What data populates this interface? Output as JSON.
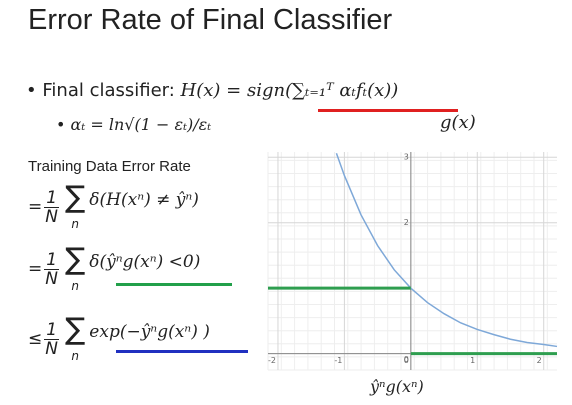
{
  "title": "Error Rate of Final Classifier",
  "bullet1": {
    "bullet": "•",
    "label": "Final classifier:",
    "formula": "H(x) = sign(∑ₜ₌₁ᵀ αₜfₜ(x))"
  },
  "g_label": "g(x)",
  "bullet2": {
    "bullet": "•",
    "formula": "αₜ = ln√(1 − εₜ)/εₜ"
  },
  "training_label": "Training Data Error Rate",
  "equations": [
    {
      "prefix": "=",
      "num": "1",
      "den": "N",
      "sum": "∑",
      "sum_sub": "n",
      "body": "δ(H(xⁿ) ≠ ŷⁿ)"
    },
    {
      "prefix": "=",
      "num": "1",
      "den": "N",
      "sum": "∑",
      "sum_sub": "n",
      "body": "δ(ŷⁿg(xⁿ) <0)"
    },
    {
      "prefix": "≤",
      "num": "1",
      "den": "N",
      "sum": "∑",
      "sum_sub": "n",
      "body": "exp(−ŷⁿg(xⁿ) )"
    }
  ],
  "chart_data": {
    "type": "line",
    "x_label": "ŷⁿg(xⁿ)",
    "xlim": [
      -2.15,
      2.2
    ],
    "ylim": [
      -0.25,
      3.08
    ],
    "xticks": [
      -2,
      -1,
      0,
      1,
      2
    ],
    "yticks": [
      0,
      2,
      3
    ],
    "grid": true,
    "series": [
      {
        "name": "exp",
        "color": "#7ea8d8",
        "x": [
          -1.12,
          -1,
          -0.75,
          -0.5,
          -0.25,
          0,
          0.25,
          0.5,
          0.75,
          1,
          1.25,
          1.5,
          1.75,
          2,
          2.2
        ],
        "values": [
          3.06,
          2.72,
          2.12,
          1.65,
          1.28,
          1,
          0.78,
          0.61,
          0.47,
          0.37,
          0.29,
          0.22,
          0.17,
          0.14,
          0.11
        ]
      },
      {
        "name": "step",
        "color": "#2e9e4f",
        "x": [
          -2.15,
          0,
          0,
          0,
          2.2
        ],
        "values": [
          1,
          1,
          null,
          0,
          0
        ]
      }
    ]
  }
}
